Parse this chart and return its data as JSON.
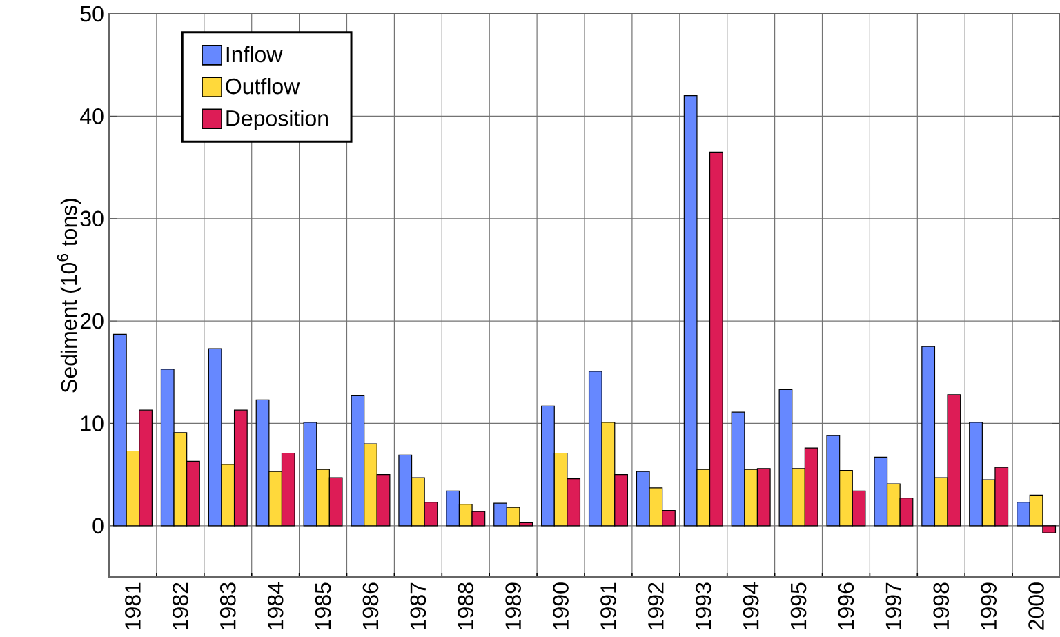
{
  "chart_data": {
    "type": "bar",
    "ylabel": "Sediment (10$^{6}$ tons)",
    "categories": [
      "1981",
      "1982",
      "1983",
      "1984",
      "1985",
      "1986",
      "1987",
      "1988",
      "1989",
      "1990",
      "1991",
      "1992",
      "1993",
      "1994",
      "1995",
      "1996",
      "1997",
      "1998",
      "1999",
      "2000"
    ],
    "series": [
      {
        "name": "Inflow",
        "color": "#6688ff",
        "values": [
          18.7,
          15.3,
          17.3,
          12.3,
          10.1,
          12.7,
          6.9,
          3.4,
          2.2,
          11.7,
          15.1,
          5.3,
          42.0,
          11.1,
          13.3,
          8.8,
          6.7,
          17.5,
          10.1,
          2.3
        ]
      },
      {
        "name": "Outflow",
        "color": "#ffd93b",
        "values": [
          7.3,
          9.1,
          6.0,
          5.3,
          5.5,
          8.0,
          4.7,
          2.1,
          1.8,
          7.1,
          10.1,
          3.7,
          5.5,
          5.5,
          5.6,
          5.4,
          4.1,
          4.7,
          4.5,
          3.0
        ]
      },
      {
        "name": "Deposition",
        "color": "#dd1c56",
        "values": [
          11.3,
          6.3,
          11.3,
          7.1,
          4.7,
          5.0,
          2.3,
          1.4,
          0.3,
          4.6,
          5.0,
          1.5,
          36.5,
          5.6,
          7.6,
          3.4,
          2.7,
          12.8,
          5.7,
          -0.7
        ]
      }
    ],
    "ylim": [
      -5,
      50
    ],
    "yticks": [
      {
        "value": -5,
        "label": null
      },
      0,
      10,
      20,
      30,
      40,
      50
    ],
    "grid": true,
    "legend": "top left"
  }
}
